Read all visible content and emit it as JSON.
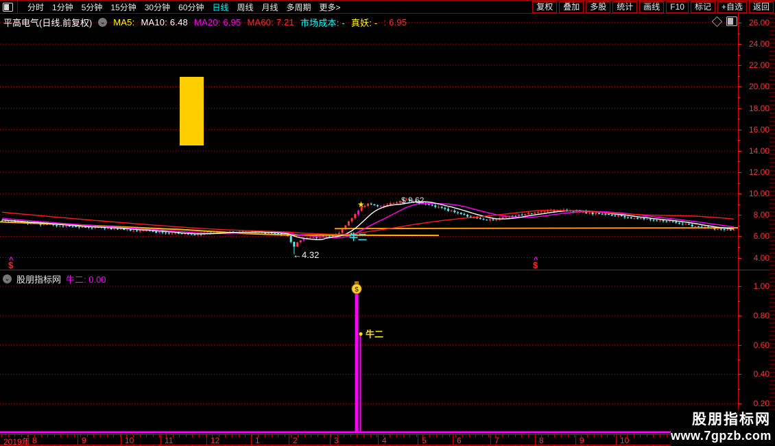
{
  "menu_bar": {
    "left_items": [
      "分时",
      "1分钟",
      "5分钟",
      "15分钟",
      "30分钟",
      "60分钟",
      "日线",
      "周线",
      "月线",
      "多周期",
      "更多>"
    ],
    "active_item": "日线",
    "right_items": [
      "复权",
      "叠加",
      "多股",
      "统计",
      "画线",
      "F10",
      "标记",
      "+自选",
      "返回"
    ]
  },
  "main_header": {
    "title": "平高电气(日线.前复权)",
    "segments": [
      {
        "text": "MA5:",
        "color": "#ffff00"
      },
      {
        "text": "MA10: 6.48",
        "color": "#ffffff"
      },
      {
        "text": "MA20: 6.95",
        "color": "#ff00ff"
      },
      {
        "text": "MA60: 7.21",
        "color": "#ff2a2a"
      },
      {
        "text": "市场成本: -",
        "color": "#00ffff"
      },
      {
        "text": "真妖: -",
        "color": "#ffff00"
      },
      {
        "text": ": 6.95",
        "color": "#ff2a2a"
      }
    ]
  },
  "indicator_header": {
    "source": "股朋指标网",
    "label": "牛二: 0.00"
  },
  "main_axis_labels": [
    "26.00",
    "24.00",
    "22.00",
    "20.00",
    "18.00",
    "16.00",
    "14.00",
    "12.00",
    "10.00",
    "8.00",
    "6.00",
    "4.00"
  ],
  "indicator_axis_labels": [
    "1.00",
    "0.80",
    "0.60",
    "0.40",
    "0.20"
  ],
  "date_axis": {
    "labels": [
      {
        "label": "2019年",
        "x": 5,
        "sep": false
      },
      {
        "label": "8",
        "x": 47,
        "sep": true
      },
      {
        "label": "9",
        "x": 119,
        "sep": true
      },
      {
        "label": "10",
        "x": 182,
        "sep": true
      },
      {
        "label": "11",
        "x": 240,
        "sep": true
      },
      {
        "label": "12",
        "x": 307,
        "sep": true
      },
      {
        "label": "1",
        "x": 372,
        "sep": true
      },
      {
        "label": "2",
        "x": 427,
        "sep": true
      },
      {
        "label": "3",
        "x": 487,
        "sep": true
      },
      {
        "label": "4",
        "x": 557,
        "sep": true
      },
      {
        "label": "5",
        "x": 615,
        "sep": true
      },
      {
        "label": "6",
        "x": 666,
        "sep": true
      },
      {
        "label": "7",
        "x": 721,
        "sep": true
      },
      {
        "label": "8",
        "x": 786,
        "sep": true
      },
      {
        "label": "9",
        "x": 845,
        "sep": true
      },
      {
        "label": "10",
        "x": 904,
        "sep": true
      }
    ]
  },
  "watermark": {
    "line1": "股朋指标网",
    "line2": "www.7gpzb.com"
  },
  "annotations": {
    "low_label": "←4.32",
    "high_label": "$ 9.62",
    "star": "★",
    "main_signal_text": "牛二",
    "sub_signal_text": "牛二",
    "dollar_marker": "$",
    "caret_marker": "^"
  },
  "chart_data": {
    "type": "candlestick",
    "title": "平高电气 日线 前复权",
    "ylim": [
      3.6,
      26.4
    ],
    "yticks": [
      26,
      24,
      22,
      20,
      18,
      16,
      14,
      12,
      10,
      8,
      6,
      4
    ],
    "x_months": [
      "2019-08",
      "09",
      "10",
      "11",
      "12",
      "2020-01",
      "02",
      "03",
      "04",
      "05",
      "06",
      "07",
      "08",
      "09",
      "10"
    ],
    "close_anchors": [
      [
        0,
        7.45
      ],
      [
        40,
        7.25
      ],
      [
        80,
        7.05
      ],
      [
        120,
        6.9
      ],
      [
        160,
        6.75
      ],
      [
        200,
        6.55
      ],
      [
        240,
        6.35
      ],
      [
        280,
        6.2
      ],
      [
        310,
        6.35
      ],
      [
        340,
        6.45
      ],
      [
        370,
        6.4
      ],
      [
        400,
        6.25
      ],
      [
        420,
        6.05
      ],
      [
        428,
        4.95
      ],
      [
        436,
        5.65
      ],
      [
        455,
        5.9
      ],
      [
        475,
        5.95
      ],
      [
        492,
        6.2
      ],
      [
        505,
        7.1
      ],
      [
        515,
        7.9
      ],
      [
        527,
        8.7
      ],
      [
        538,
        9.15
      ],
      [
        552,
        8.8
      ],
      [
        566,
        9.0
      ],
      [
        580,
        9.25
      ],
      [
        592,
        9.45
      ],
      [
        605,
        9.2
      ],
      [
        620,
        9.0
      ],
      [
        640,
        8.7
      ],
      [
        660,
        8.35
      ],
      [
        680,
        7.9
      ],
      [
        700,
        7.55
      ],
      [
        720,
        7.6
      ],
      [
        745,
        7.85
      ],
      [
        770,
        8.1
      ],
      [
        795,
        8.35
      ],
      [
        820,
        8.45
      ],
      [
        845,
        8.3
      ],
      [
        870,
        8.1
      ],
      [
        895,
        7.95
      ],
      [
        920,
        7.75
      ],
      [
        945,
        7.6
      ],
      [
        970,
        7.4
      ],
      [
        995,
        7.15
      ],
      [
        1020,
        6.9
      ],
      [
        1045,
        6.7
      ],
      [
        1076,
        6.5
      ]
    ],
    "low_point": {
      "x": 428,
      "price": 4.32
    },
    "high_point": {
      "x": 592,
      "price": 9.62
    },
    "ma_windows": {
      "MA10": 10,
      "MA20": 20,
      "MA60": 60
    },
    "ma_last_values": {
      "MA10": 6.48,
      "MA20": 6.95,
      "MA60": 7.21
    },
    "ma_colors": {
      "MA10": "#ffffff",
      "MA20": "#ff00ff",
      "MA60": "#ff1a1a"
    },
    "cost_lines": [
      {
        "color": "#ffb400",
        "anchors": [
          [
            0,
            7.35
          ],
          [
            120,
            7.05
          ],
          [
            260,
            6.65
          ],
          [
            360,
            6.25
          ],
          [
            420,
            6.12
          ],
          [
            640,
            6.08
          ]
        ]
      },
      {
        "color": "#ff9800",
        "anchors": [
          [
            488,
            6.72
          ],
          [
            1076,
            6.8
          ]
        ]
      }
    ],
    "magenta_bars_x": [
      97,
      232,
      443,
      521,
      553,
      755,
      818
    ],
    "candle_colors": {
      "up": "#ff3a3a",
      "down": "#55f2f2",
      "signal": "#ff00ff"
    },
    "dollar_marker_x": [
      12,
      777
    ],
    "indicator": {
      "name": "牛二",
      "current_value": "0.00",
      "ylim": [
        0,
        1.12
      ],
      "yticks": [
        1.0,
        0.8,
        0.6,
        0.4,
        0.2
      ],
      "line_color": "#ff00ff",
      "spikes": [
        {
          "x": 520,
          "value": 0.95,
          "width": 5
        },
        {
          "x": 525.5,
          "value": 0.68,
          "width": 2
        }
      ],
      "signal": {
        "x": 526,
        "value": 0.6
      },
      "moneybag_x": 520
    }
  }
}
